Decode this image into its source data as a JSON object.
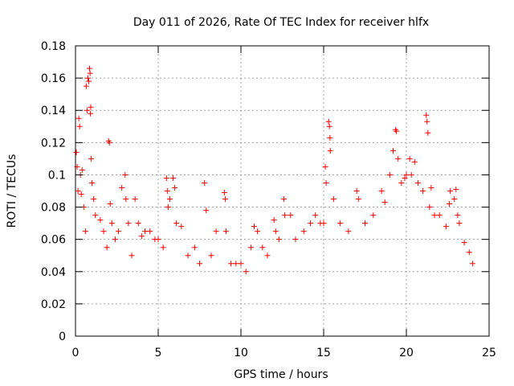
{
  "chart_data": {
    "type": "scatter",
    "title": "Day 011 of 2026, Rate Of TEC Index for receiver hlfx",
    "xlabel": "GPS time / hours",
    "ylabel": "ROTI / TECUs",
    "xlim": [
      0,
      25
    ],
    "ylim": [
      0,
      0.18
    ],
    "x_ticks": [
      0,
      5,
      10,
      15,
      20,
      25
    ],
    "x_tick_labels": [
      "0",
      "5",
      "10",
      "15",
      "20",
      "25"
    ],
    "y_ticks": [
      0,
      0.02,
      0.04,
      0.06,
      0.08,
      0.1,
      0.12,
      0.14,
      0.16,
      0.18
    ],
    "y_tick_labels": [
      "0",
      "0.02",
      "0.04",
      "0.06",
      "0.08",
      "0.1",
      "0.12",
      "0.14",
      "0.16",
      "0.18"
    ],
    "grid": true,
    "marker": "+",
    "series": [
      {
        "name": "ROTI",
        "color": "#ff0000",
        "points": [
          [
            0.05,
            0.114
          ],
          [
            0.1,
            0.105
          ],
          [
            0.15,
            0.09
          ],
          [
            0.2,
            0.135
          ],
          [
            0.25,
            0.13
          ],
          [
            0.3,
            0.1
          ],
          [
            0.35,
            0.088
          ],
          [
            0.4,
            0.103
          ],
          [
            0.5,
            0.08
          ],
          [
            0.6,
            0.065
          ],
          [
            0.65,
            0.155
          ],
          [
            0.7,
            0.14
          ],
          [
            0.75,
            0.16
          ],
          [
            0.8,
            0.158
          ],
          [
            0.85,
            0.166
          ],
          [
            0.88,
            0.163
          ],
          [
            0.9,
            0.138
          ],
          [
            0.92,
            0.142
          ],
          [
            0.95,
            0.11
          ],
          [
            1.0,
            0.095
          ],
          [
            1.1,
            0.085
          ],
          [
            1.2,
            0.075
          ],
          [
            1.5,
            0.072
          ],
          [
            1.7,
            0.065
          ],
          [
            1.9,
            0.055
          ],
          [
            2.0,
            0.121
          ],
          [
            2.05,
            0.12
          ],
          [
            2.1,
            0.082
          ],
          [
            2.2,
            0.07
          ],
          [
            2.4,
            0.06
          ],
          [
            2.6,
            0.065
          ],
          [
            2.8,
            0.092
          ],
          [
            3.0,
            0.1
          ],
          [
            3.05,
            0.085
          ],
          [
            3.2,
            0.07
          ],
          [
            3.4,
            0.05
          ],
          [
            3.6,
            0.085
          ],
          [
            3.8,
            0.07
          ],
          [
            4.0,
            0.062
          ],
          [
            4.2,
            0.065
          ],
          [
            4.5,
            0.065
          ],
          [
            4.8,
            0.06
          ],
          [
            5.0,
            0.06
          ],
          [
            5.3,
            0.055
          ],
          [
            5.5,
            0.098
          ],
          [
            5.55,
            0.09
          ],
          [
            5.6,
            0.08
          ],
          [
            5.7,
            0.085
          ],
          [
            5.9,
            0.098
          ],
          [
            6.0,
            0.092
          ],
          [
            6.1,
            0.07
          ],
          [
            6.4,
            0.068
          ],
          [
            6.8,
            0.05
          ],
          [
            7.2,
            0.055
          ],
          [
            7.5,
            0.045
          ],
          [
            7.8,
            0.095
          ],
          [
            7.9,
            0.078
          ],
          [
            8.2,
            0.05
          ],
          [
            8.5,
            0.065
          ],
          [
            9.0,
            0.089
          ],
          [
            9.05,
            0.085
          ],
          [
            9.1,
            0.065
          ],
          [
            9.4,
            0.045
          ],
          [
            9.7,
            0.045
          ],
          [
            10.0,
            0.045
          ],
          [
            10.3,
            0.04
          ],
          [
            10.6,
            0.055
          ],
          [
            10.8,
            0.068
          ],
          [
            11.0,
            0.065
          ],
          [
            11.3,
            0.055
          ],
          [
            11.6,
            0.05
          ],
          [
            12.0,
            0.072
          ],
          [
            12.1,
            0.065
          ],
          [
            12.3,
            0.06
          ],
          [
            12.6,
            0.085
          ],
          [
            12.65,
            0.075
          ],
          [
            13.0,
            0.075
          ],
          [
            13.3,
            0.06
          ],
          [
            13.8,
            0.065
          ],
          [
            14.2,
            0.07
          ],
          [
            14.5,
            0.075
          ],
          [
            14.8,
            0.07
          ],
          [
            15.0,
            0.07
          ],
          [
            15.1,
            0.105
          ],
          [
            15.15,
            0.095
          ],
          [
            15.3,
            0.133
          ],
          [
            15.35,
            0.13
          ],
          [
            15.38,
            0.123
          ],
          [
            15.4,
            0.115
          ],
          [
            15.6,
            0.085
          ],
          [
            16.0,
            0.07
          ],
          [
            16.5,
            0.065
          ],
          [
            17.0,
            0.09
          ],
          [
            17.1,
            0.085
          ],
          [
            17.5,
            0.07
          ],
          [
            18.0,
            0.075
          ],
          [
            18.5,
            0.09
          ],
          [
            18.7,
            0.083
          ],
          [
            19.0,
            0.1
          ],
          [
            19.2,
            0.115
          ],
          [
            19.35,
            0.128
          ],
          [
            19.4,
            0.127
          ],
          [
            19.5,
            0.11
          ],
          [
            19.7,
            0.095
          ],
          [
            19.9,
            0.098
          ],
          [
            20.0,
            0.1
          ],
          [
            20.2,
            0.11
          ],
          [
            20.3,
            0.1
          ],
          [
            20.5,
            0.108
          ],
          [
            20.7,
            0.095
          ],
          [
            21.0,
            0.09
          ],
          [
            21.2,
            0.137
          ],
          [
            21.25,
            0.133
          ],
          [
            21.3,
            0.126
          ],
          [
            21.4,
            0.08
          ],
          [
            21.5,
            0.092
          ],
          [
            21.7,
            0.075
          ],
          [
            22.0,
            0.075
          ],
          [
            22.4,
            0.068
          ],
          [
            22.6,
            0.082
          ],
          [
            22.65,
            0.09
          ],
          [
            22.9,
            0.085
          ],
          [
            23.0,
            0.091
          ],
          [
            23.1,
            0.075
          ],
          [
            23.2,
            0.07
          ],
          [
            23.5,
            0.058
          ],
          [
            23.8,
            0.052
          ],
          [
            24.0,
            0.045
          ]
        ]
      }
    ]
  }
}
